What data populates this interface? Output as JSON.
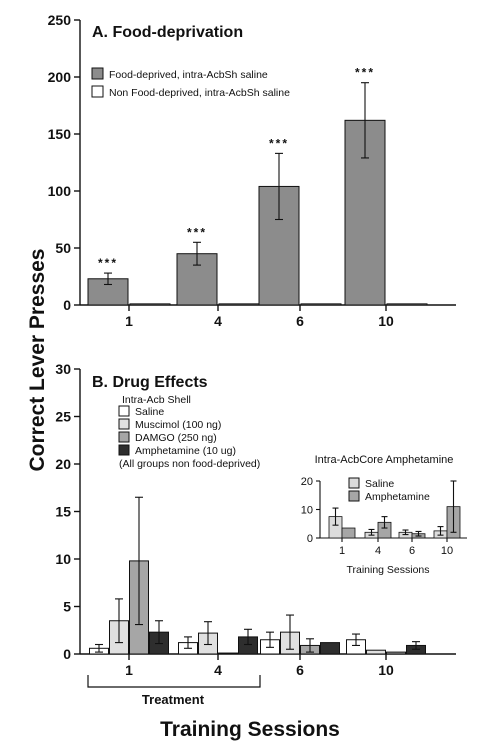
{
  "figure": {
    "ylabel": "Correct Lever Presses",
    "xlabel": "Training Sessions"
  },
  "chart_data": [
    {
      "type": "bar",
      "title": "A. Food-deprivation",
      "ylim": [
        0,
        250
      ],
      "yticks": [
        "0",
        "50",
        "100",
        "150",
        "200",
        "250"
      ],
      "categories": [
        "1",
        "4",
        "6",
        "10"
      ],
      "legend_position": "top-left",
      "series": [
        {
          "name": "Food-deprived, intra-AcbSh saline",
          "fill": "#8c8c8c",
          "values": [
            23,
            45,
            104,
            162
          ],
          "errors": [
            5,
            10,
            29,
            33
          ]
        },
        {
          "name": "Non Food-deprived, intra-AcbSh saline",
          "fill": "#ffffff",
          "values": [
            1,
            1,
            1,
            1
          ],
          "errors": [
            0,
            0,
            0,
            0
          ]
        }
      ],
      "significance": [
        "***",
        "***",
        "***",
        "***"
      ]
    },
    {
      "type": "bar",
      "title": "B. Drug Effects",
      "ylim": [
        0,
        30
      ],
      "yticks": [
        "0",
        "5",
        "10",
        "15",
        "20",
        "25",
        "30"
      ],
      "categories": [
        "1",
        "4",
        "6",
        "10"
      ],
      "legend_title": "Intra-Acb Shell",
      "legend_note": "(All groups non food-deprived)",
      "legend_position": "top-left",
      "bracket_label": "Treatment",
      "series": [
        {
          "name": "Saline",
          "fill": "#ffffff",
          "values": [
            0.6,
            1.2,
            1.5,
            1.5
          ],
          "errors": [
            0.4,
            0.6,
            0.8,
            0.6
          ]
        },
        {
          "name": "Muscimol (100 ng)",
          "fill": "#e0e0e0",
          "values": [
            3.5,
            2.2,
            2.3,
            0.4
          ],
          "errors": [
            2.3,
            1.2,
            1.8,
            0
          ]
        },
        {
          "name": "DAMGO (250 ng)",
          "fill": "#a6a6a6",
          "values": [
            9.8,
            0.1,
            0.9,
            0.2
          ],
          "errors": [
            6.7,
            0,
            0.7,
            0
          ]
        },
        {
          "name": "Amphetamine (10 ug)",
          "fill": "#2e2e2e",
          "values": [
            2.3,
            1.8,
            1.2,
            0.9
          ],
          "errors": [
            1.2,
            0.8,
            0,
            0.4
          ]
        }
      ]
    },
    {
      "type": "bar",
      "title": "Intra-AcbCore Amphetamine",
      "xlabel": "Training Sessions",
      "ylim": [
        0,
        20
      ],
      "yticks": [
        "0",
        "10",
        "20"
      ],
      "categories": [
        "1",
        "4",
        "6",
        "10"
      ],
      "legend_position": "top-left",
      "series": [
        {
          "name": "Saline",
          "fill": "#dcdcdc",
          "values": [
            7.5,
            2,
            2,
            2.5
          ],
          "errors": [
            3,
            1,
            0.8,
            1.5
          ]
        },
        {
          "name": "Amphetamine",
          "fill": "#a6a6a6",
          "values": [
            3.5,
            5.5,
            1.5,
            11
          ],
          "errors": [
            0,
            2,
            0.8,
            9
          ]
        }
      ]
    }
  ]
}
